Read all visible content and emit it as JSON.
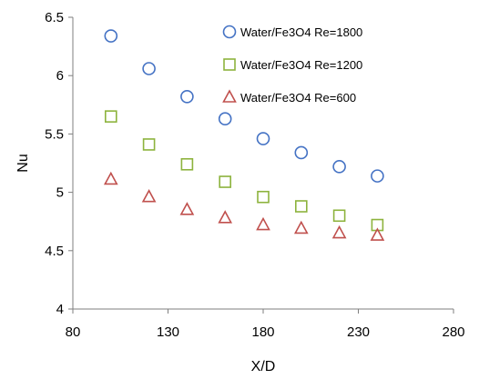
{
  "chart_data": {
    "type": "scatter",
    "xlabel": "X/D",
    "ylabel": "Nu",
    "xlim": [
      80,
      280
    ],
    "ylim": [
      4,
      6.5
    ],
    "x_ticks": [
      80,
      130,
      180,
      230,
      280
    ],
    "y_ticks": [
      4,
      4.5,
      5,
      5.5,
      6,
      6.5
    ],
    "x_tick_labels": [
      "80",
      "130",
      "180",
      "230",
      "280"
    ],
    "y_tick_labels": [
      "4",
      "4.5",
      "5",
      "5.5",
      "6",
      "6.5"
    ],
    "grid": false,
    "legend_position": "top-right",
    "series": [
      {
        "name": "Water/Fe3O4 Re=1800",
        "marker": "circle",
        "color": "#4472C4",
        "x": [
          100,
          120,
          140,
          160,
          180,
          200,
          220,
          240
        ],
        "y": [
          6.34,
          6.06,
          5.82,
          5.63,
          5.46,
          5.34,
          5.22,
          5.14
        ]
      },
      {
        "name": "Water/Fe3O4 Re=1200",
        "marker": "square",
        "color": "#8DB33D",
        "x": [
          100,
          120,
          140,
          160,
          180,
          200,
          220,
          240
        ],
        "y": [
          5.65,
          5.41,
          5.24,
          5.09,
          4.96,
          4.88,
          4.8,
          4.72
        ]
      },
      {
        "name": "Water/Fe3O4 Re=600",
        "marker": "triangle",
        "color": "#C0504D",
        "x": [
          100,
          120,
          140,
          160,
          180,
          200,
          220,
          240
        ],
        "y": [
          5.11,
          4.96,
          4.85,
          4.78,
          4.72,
          4.69,
          4.65,
          4.63
        ]
      }
    ]
  }
}
